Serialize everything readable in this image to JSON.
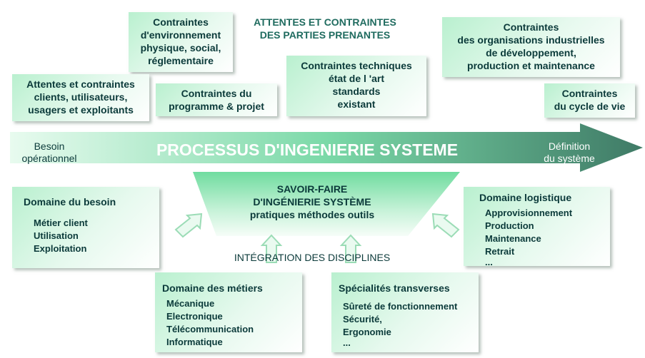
{
  "top_heading": {
    "line1": "ATTENTES ET CONTRAINTES",
    "line2": "DES PARTIES PRENANTES"
  },
  "constraints": {
    "env": [
      "Contraintes",
      "d'environnement",
      "physique, social,",
      "réglementaire"
    ],
    "clients": [
      "Attentes et contraintes",
      "clients, utilisateurs,",
      "usagers et exploitants"
    ],
    "programme": [
      "Contraintes du",
      "programme & projet"
    ],
    "technique": [
      "Contraintes techniques",
      "état de l 'art",
      "standards",
      "existant"
    ],
    "organisations": [
      "Contraintes",
      "des organisations industrielles",
      "de développement,",
      "production et maintenance"
    ],
    "cycle": [
      "Contraintes",
      "du cycle de vie"
    ]
  },
  "process_arrow": {
    "title": "PROCESSUS D'INGENIERIE SYSTEME",
    "left": [
      "Besoin",
      "opérationnel"
    ],
    "right": [
      "Définition",
      "du système"
    ],
    "colors": {
      "start": "#e8fbef",
      "mid": "#7bd9a8",
      "end": "#3f7a66"
    }
  },
  "savoir_faire": [
    "SAVOIR-FAIRE",
    "D'INGÉNIERIE SYSTÈME",
    "pratiques méthodes outils"
  ],
  "integration": "INTÉGRATION DES DISCIPLINES",
  "domains": {
    "besoin": {
      "title": "Domaine du besoin",
      "items": [
        "Métier client",
        "Utilisation",
        "Exploitation"
      ]
    },
    "logistique": {
      "title": "Domaine logistique",
      "items": [
        "Approvisionnement",
        "Production",
        "Maintenance",
        "Retrait",
        "..."
      ]
    },
    "metiers": {
      "title": "Domaine des métiers",
      "items": [
        "Mécanique",
        "Electronique",
        "Télécommunication",
        "Informatique"
      ]
    },
    "transverses": {
      "title": "Spécialités transverses",
      "items": [
        "Sûreté de fonctionnement",
        "Sécurité,",
        "Ergonomie",
        "..."
      ]
    }
  }
}
